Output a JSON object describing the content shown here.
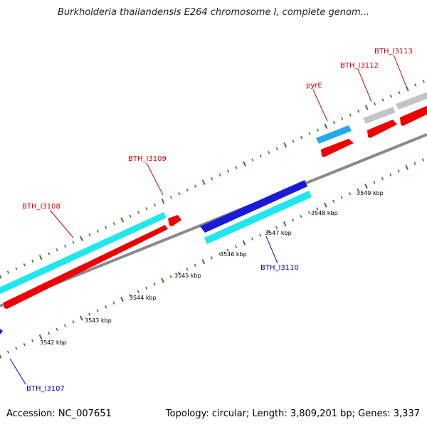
{
  "title": "Burkholderia thailandensis E264 chromosome I, complete genom...",
  "footer": {
    "accession": "Accession: NC_007651",
    "topology": "Topology: circular; Length: 3,809,201 bp; Genes: 3,337"
  },
  "colors": {
    "backbone": "#8a8a8a",
    "tick": "#2e7d1e",
    "red_gene": "#ee0000",
    "cyan_gene": "#22e6ee",
    "blue_gene": "#1a1ad6",
    "skyblue_gene": "#22aaee",
    "gray_gene": "#c4c4c4",
    "red_label": "#cc0000",
    "blue_label": "#0000cc"
  },
  "kbp_labels": [
    "3542 kbp",
    "3543 kbp",
    "3544 kbp",
    "3545 kbp",
    "3546 kbp",
    "3547 kbp",
    "3548 kbp",
    "3549 kbp"
  ],
  "gene_labels": {
    "bth_i3107": "BTH_I3107",
    "bth_i3108": "BTH_I3108",
    "bth_i3109": "BTH_I3109",
    "bth_i3110": "BTH_I3110",
    "pyre": "pyrE",
    "bth_i3112": "BTH_I3112",
    "bth_i3113": "BTH_I3113"
  }
}
